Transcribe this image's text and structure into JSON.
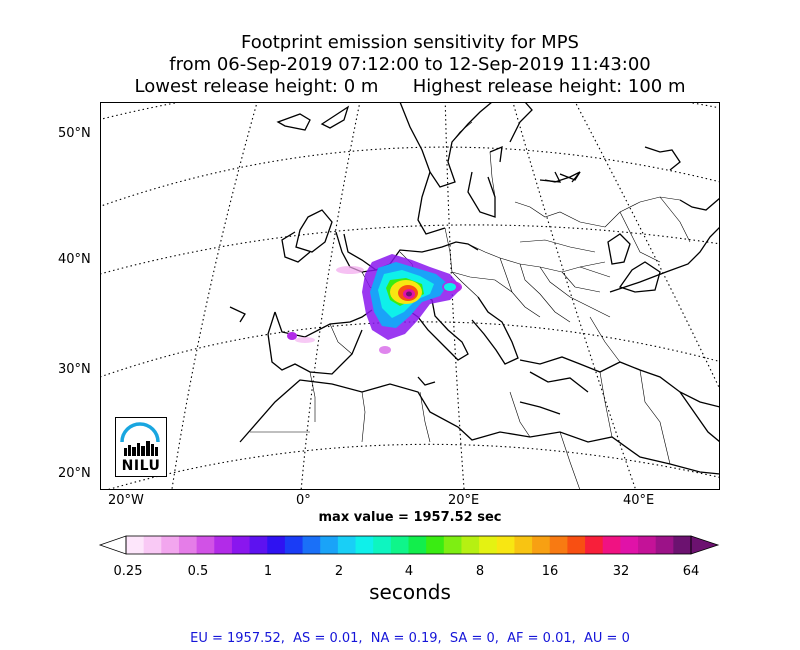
{
  "title": {
    "line1": "Footprint emission sensitivity for MPS",
    "line2": "from 06-Sep-2019 07:12:00 to 12-Sep-2019 11:43:00",
    "line3": "Lowest release height: 0 m      Highest release height: 100 m"
  },
  "map": {
    "lat_labels": [
      "50°N",
      "40°N",
      "30°N",
      "20°N"
    ],
    "lon_labels": [
      "20°W",
      "0°",
      "20°E",
      "40°E"
    ],
    "max_value_text": "max value = 1957.52 sec",
    "logo_text": "NILU"
  },
  "colorbar": {
    "tick_labels": [
      "0.25",
      "0.5",
      "1",
      "2",
      "4",
      "8",
      "16",
      "32",
      "64"
    ],
    "unit": "seconds",
    "colors": [
      "#fde6fb",
      "#f9c9f5",
      "#f2a6ee",
      "#e57de8",
      "#d152e6",
      "#b22be8",
      "#8a16ee",
      "#5d12f0",
      "#2f12f2",
      "#1a3cf6",
      "#1a70f8",
      "#1aa3f8",
      "#19cff6",
      "#0ff0ea",
      "#0ef5c0",
      "#0ff58a",
      "#12ee4c",
      "#3aec12",
      "#7eee12",
      "#b6f012",
      "#e4f212",
      "#f8e612",
      "#f8c412",
      "#f8a012",
      "#f87a12",
      "#f84f12",
      "#f81f3a",
      "#f01282",
      "#e012a8",
      "#c41298",
      "#9c1288",
      "#6c1270"
    ]
  },
  "stats_text": "EU = 1957.52,  AS = 0.01,  NA = 0.19,  SA = 0,  AF = 0.01,  AU = 0"
}
